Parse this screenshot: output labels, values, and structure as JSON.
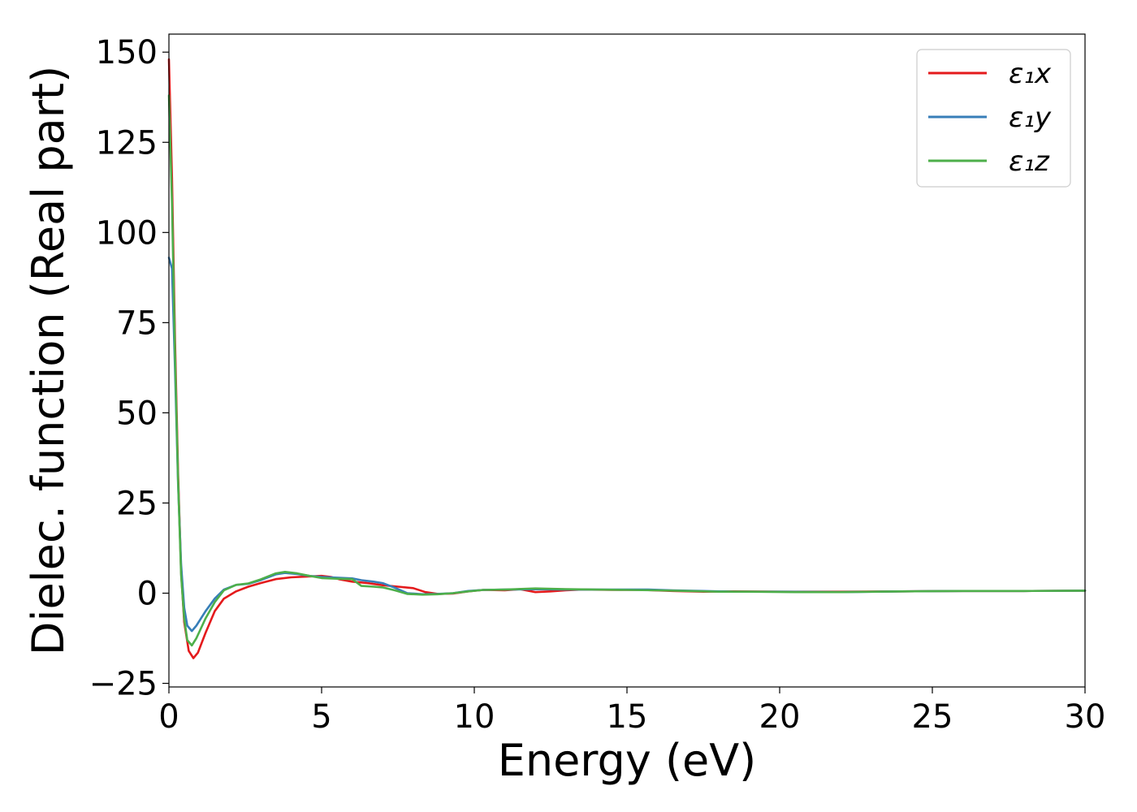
{
  "chart_data": {
    "type": "line",
    "xlabel": "Energy (eV)",
    "ylabel": "Dielec. function (Real part)",
    "xlim": [
      0,
      30
    ],
    "ylim": [
      -26,
      155
    ],
    "xticks": [
      0,
      5,
      10,
      15,
      20,
      25,
      30
    ],
    "xtick_labels": [
      "0",
      "5",
      "10",
      "15",
      "20",
      "25",
      "30"
    ],
    "yticks": [
      -25,
      0,
      25,
      50,
      75,
      100,
      125,
      150
    ],
    "ytick_labels": [
      "−25",
      "0",
      "25",
      "50",
      "75",
      "100",
      "125",
      "150"
    ],
    "grid": false,
    "legend_position": "top-right",
    "series": [
      {
        "name": "ε₁x",
        "color": "#e41a1c",
        "points": [
          [
            0,
            148
          ],
          [
            0.1,
            115
          ],
          [
            0.2,
            70
          ],
          [
            0.3,
            33
          ],
          [
            0.4,
            6
          ],
          [
            0.5,
            -8
          ],
          [
            0.65,
            -16
          ],
          [
            0.8,
            -18
          ],
          [
            0.95,
            -16.5
          ],
          [
            1.2,
            -11
          ],
          [
            1.5,
            -5
          ],
          [
            1.8,
            -1.5
          ],
          [
            2.2,
            0.5
          ],
          [
            2.6,
            1.8
          ],
          [
            3.0,
            2.8
          ],
          [
            3.5,
            3.9
          ],
          [
            4.0,
            4.4
          ],
          [
            4.5,
            4.6
          ],
          [
            5.0,
            4.8
          ],
          [
            5.3,
            4.5
          ],
          [
            5.6,
            3.8
          ],
          [
            6.0,
            3.2
          ],
          [
            6.5,
            2.8
          ],
          [
            7.0,
            2.2
          ],
          [
            7.5,
            1.8
          ],
          [
            8.0,
            1.4
          ],
          [
            8.4,
            0.3
          ],
          [
            8.8,
            -0.2
          ],
          [
            9.3,
            -0.1
          ],
          [
            9.8,
            0.5
          ],
          [
            10.3,
            0.9
          ],
          [
            11.0,
            0.8
          ],
          [
            11.5,
            1.1
          ],
          [
            12.0,
            0.3
          ],
          [
            12.5,
            0.5
          ],
          [
            13.0,
            0.8
          ],
          [
            13.5,
            1.0
          ],
          [
            14.5,
            0.9
          ],
          [
            15.5,
            0.9
          ],
          [
            16.5,
            0.6
          ],
          [
            17.5,
            0.4
          ],
          [
            18.5,
            0.5
          ],
          [
            20,
            0.4
          ],
          [
            22,
            0.4
          ],
          [
            24,
            0.5
          ],
          [
            26,
            0.6
          ],
          [
            28,
            0.6
          ],
          [
            30,
            0.7
          ]
        ]
      },
      {
        "name": "ε₁y",
        "color": "#377eb8",
        "points": [
          [
            0,
            93
          ],
          [
            0.1,
            90
          ],
          [
            0.2,
            62
          ],
          [
            0.3,
            30
          ],
          [
            0.4,
            8
          ],
          [
            0.5,
            -4
          ],
          [
            0.6,
            -9
          ],
          [
            0.75,
            -10.5
          ],
          [
            0.9,
            -9
          ],
          [
            1.2,
            -5
          ],
          [
            1.5,
            -1.5
          ],
          [
            1.8,
            1
          ],
          [
            2.2,
            2.3
          ],
          [
            2.6,
            2.6
          ],
          [
            3.0,
            3.6
          ],
          [
            3.5,
            5.2
          ],
          [
            3.8,
            5.6
          ],
          [
            4.2,
            5.3
          ],
          [
            4.6,
            4.8
          ],
          [
            5.0,
            4.5
          ],
          [
            5.5,
            4.3
          ],
          [
            6.0,
            4.1
          ],
          [
            6.3,
            3.6
          ],
          [
            6.7,
            3.2
          ],
          [
            7.0,
            2.8
          ],
          [
            7.4,
            1.5
          ],
          [
            7.8,
            0
          ],
          [
            8.3,
            -0.3
          ],
          [
            8.8,
            -0.2
          ],
          [
            9.3,
            0
          ],
          [
            9.8,
            0.6
          ],
          [
            10.3,
            0.9
          ],
          [
            11.0,
            1.0
          ],
          [
            12.0,
            1.1
          ],
          [
            13.0,
            1.0
          ],
          [
            14.0,
            1.0
          ],
          [
            15.0,
            1.0
          ],
          [
            15.7,
            1.0
          ],
          [
            16.5,
            0.8
          ],
          [
            17.5,
            0.6
          ],
          [
            18.5,
            0.4
          ],
          [
            20,
            0.4
          ],
          [
            22,
            0.3
          ],
          [
            24,
            0.5
          ],
          [
            26,
            0.6
          ],
          [
            28,
            0.6
          ],
          [
            30,
            0.7
          ]
        ]
      },
      {
        "name": "ε₁z",
        "color": "#4daf4a",
        "points": [
          [
            0,
            138
          ],
          [
            0.1,
            108
          ],
          [
            0.2,
            66
          ],
          [
            0.3,
            31
          ],
          [
            0.4,
            5
          ],
          [
            0.5,
            -7
          ],
          [
            0.6,
            -13
          ],
          [
            0.75,
            -14.5
          ],
          [
            0.9,
            -12.5
          ],
          [
            1.2,
            -7
          ],
          [
            1.5,
            -2.5
          ],
          [
            1.8,
            0.8
          ],
          [
            2.2,
            2.3
          ],
          [
            2.6,
            2.7
          ],
          [
            3.0,
            3.8
          ],
          [
            3.5,
            5.5
          ],
          [
            3.8,
            5.9
          ],
          [
            4.2,
            5.5
          ],
          [
            4.6,
            4.8
          ],
          [
            5.0,
            4.2
          ],
          [
            5.5,
            4.0
          ],
          [
            6.0,
            3.9
          ],
          [
            6.3,
            2.0
          ],
          [
            6.7,
            1.8
          ],
          [
            7.0,
            1.6
          ],
          [
            7.4,
            0.8
          ],
          [
            7.8,
            -0.2
          ],
          [
            8.3,
            -0.4
          ],
          [
            8.8,
            -0.3
          ],
          [
            9.3,
            0
          ],
          [
            9.8,
            0.5
          ],
          [
            10.3,
            0.9
          ],
          [
            11.0,
            1.0
          ],
          [
            12.0,
            1.3
          ],
          [
            13.0,
            1.1
          ],
          [
            14.0,
            1.0
          ],
          [
            15.0,
            0.9
          ],
          [
            16.0,
            0.8
          ],
          [
            17.0,
            0.6
          ],
          [
            18.0,
            0.4
          ],
          [
            19.0,
            0.4
          ],
          [
            20.5,
            0.3
          ],
          [
            22,
            0.3
          ],
          [
            24,
            0.5
          ],
          [
            26,
            0.6
          ],
          [
            28,
            0.6
          ],
          [
            30,
            0.7
          ]
        ]
      }
    ]
  }
}
